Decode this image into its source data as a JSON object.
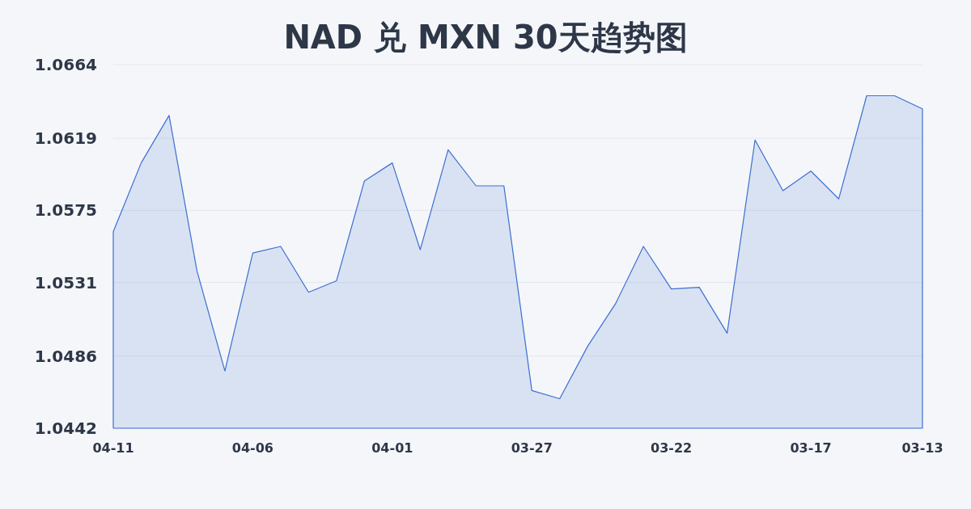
{
  "chart_data": {
    "type": "area",
    "title": "NAD 兑 MXN 30天趋势图",
    "categories": [
      "04-11",
      null,
      null,
      null,
      null,
      "04-06",
      null,
      null,
      null,
      null,
      "04-01",
      null,
      null,
      null,
      null,
      "03-27",
      null,
      null,
      null,
      null,
      "03-22",
      null,
      null,
      null,
      null,
      "03-17",
      null,
      null,
      null,
      "03-13"
    ],
    "values": [
      1.0562,
      1.0604,
      1.0633,
      1.0538,
      1.0477,
      1.0549,
      1.0553,
      1.0525,
      1.0532,
      1.0593,
      1.0604,
      1.0551,
      1.0612,
      1.059,
      1.059,
      1.0465,
      1.046,
      1.0492,
      1.0518,
      1.0553,
      1.0527,
      1.0528,
      1.05,
      1.0618,
      1.0587,
      1.0599,
      1.0582,
      1.0645,
      1.0645,
      1.0637
    ],
    "color": "#3d6fd1",
    "ylim": [
      1.0442,
      1.0664
    ],
    "yticks": [
      1.0664,
      1.0619,
      1.0575,
      1.0531,
      1.0486,
      1.0442
    ],
    "grid": "y"
  }
}
